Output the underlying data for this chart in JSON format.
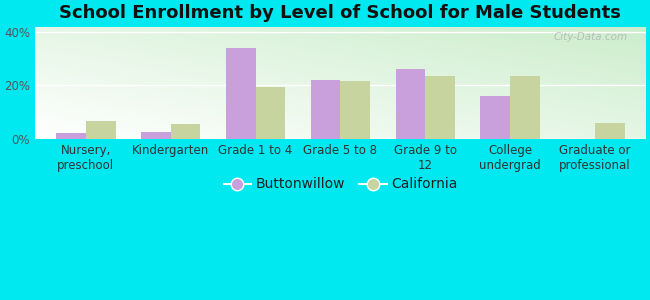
{
  "title": "School Enrollment by Level of School for Male Students",
  "categories": [
    "Nursery,\npreschool",
    "Kindergarten",
    "Grade 1 to 4",
    "Grade 5 to 8",
    "Grade 9 to\n12",
    "College\nundergrad",
    "Graduate or\nprofessional"
  ],
  "buttonwillow": [
    2.0,
    2.5,
    34.0,
    22.0,
    26.0,
    16.0,
    0.0
  ],
  "california": [
    6.5,
    5.5,
    19.5,
    21.5,
    23.5,
    23.5,
    6.0
  ],
  "bar_color_buttonwillow": "#c9a0dc",
  "bar_color_california": "#c8d4a0",
  "background_outer": "#00e8f0",
  "ylim": [
    0,
    42
  ],
  "yticks": [
    0,
    20,
    40
  ],
  "ytick_labels": [
    "0%",
    "20%",
    "40%"
  ],
  "legend_labels": [
    "Buttonwillow",
    "California"
  ],
  "title_fontsize": 13,
  "tick_fontsize": 8.5,
  "legend_fontsize": 10,
  "bar_width": 0.35,
  "watermark": "City-Data.com"
}
